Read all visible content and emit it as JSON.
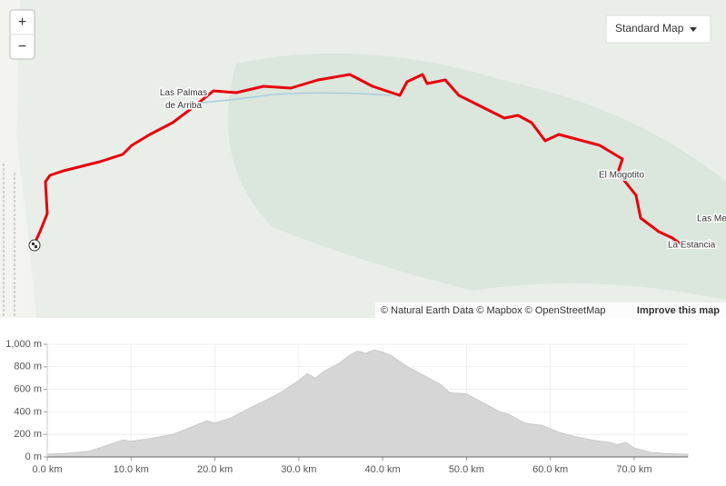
{
  "map": {
    "zoom_in": "+",
    "zoom_out": "−",
    "style_selector": "Standard Map",
    "places": [
      {
        "lines": [
          "Las Palmas",
          "de Arriba"
        ]
      },
      {
        "lines": [
          "El Mogotito"
        ]
      },
      {
        "lines": [
          "Las Me"
        ]
      },
      {
        "lines": [
          "La Estancia"
        ]
      }
    ],
    "attribution": "© Natural Earth Data © Mapbox © OpenStreetMap",
    "improve": "Improve this map"
  },
  "chart_data": {
    "type": "area",
    "x": [
      0,
      2,
      5,
      7,
      9,
      10,
      12,
      15,
      17,
      19,
      20,
      22,
      24,
      26,
      28,
      30,
      31,
      32,
      33,
      34,
      35,
      36,
      37,
      38,
      39,
      40,
      41,
      42,
      43,
      44,
      45,
      46,
      47,
      48,
      50,
      52,
      54,
      55,
      57,
      59,
      61,
      63,
      65,
      67,
      68,
      69,
      70,
      72,
      74,
      76,
      76.4
    ],
    "values": [
      25,
      30,
      50,
      100,
      150,
      140,
      160,
      200,
      260,
      320,
      300,
      350,
      430,
      500,
      580,
      680,
      740,
      700,
      760,
      800,
      840,
      900,
      940,
      920,
      950,
      930,
      900,
      850,
      800,
      760,
      720,
      680,
      640,
      570,
      560,
      480,
      400,
      380,
      300,
      280,
      220,
      180,
      150,
      130,
      110,
      130,
      80,
      40,
      30,
      25,
      25
    ],
    "color": "#d6d6d6",
    "xlim": [
      0,
      76.4
    ],
    "ylim": [
      0,
      1000
    ],
    "xticks": [
      {
        "value": 0,
        "label": "0.0 km"
      },
      {
        "value": 10,
        "label": "10.0 km"
      },
      {
        "value": 20,
        "label": "20.0 km"
      },
      {
        "value": 30,
        "label": "30.0 km"
      },
      {
        "value": 40,
        "label": "40.0 km"
      },
      {
        "value": 50,
        "label": "50.0 km"
      },
      {
        "value": 60,
        "label": "60.0 km"
      },
      {
        "value": 70,
        "label": "70.0 km"
      }
    ],
    "yticks": [
      {
        "value": 0,
        "label": "0 m"
      },
      {
        "value": 200,
        "label": "200 m"
      },
      {
        "value": 400,
        "label": "400 m"
      },
      {
        "value": 600,
        "label": "600 m"
      },
      {
        "value": 800,
        "label": "800 m"
      },
      {
        "value": 1000,
        "label": "1,000 m"
      }
    ],
    "grid": true
  }
}
